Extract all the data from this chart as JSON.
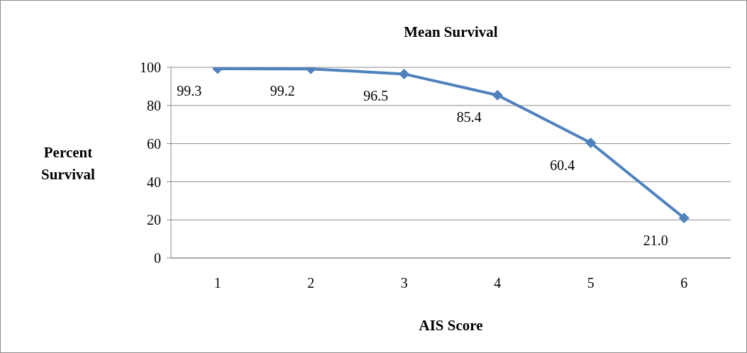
{
  "chart_data": {
    "type": "line",
    "title": "Mean Survival",
    "xlabel": "AIS Score",
    "ylabel": "Percent Survival",
    "categories": [
      "1",
      "2",
      "3",
      "4",
      "5",
      "6"
    ],
    "series": [
      {
        "color": "#4f81bd",
        "values": [
          99.3,
          99.2,
          96.5,
          85.4,
          60.4,
          21.0
        ],
        "value_labels": [
          "99.3",
          "99.2",
          "96.5",
          "85.4",
          "60.4",
          "21.0"
        ]
      }
    ],
    "ylim": [
      0,
      100
    ],
    "yticks": [
      0,
      20,
      40,
      60,
      80,
      100
    ],
    "grid": "y",
    "marker": "diamond",
    "line_style": "solid"
  }
}
